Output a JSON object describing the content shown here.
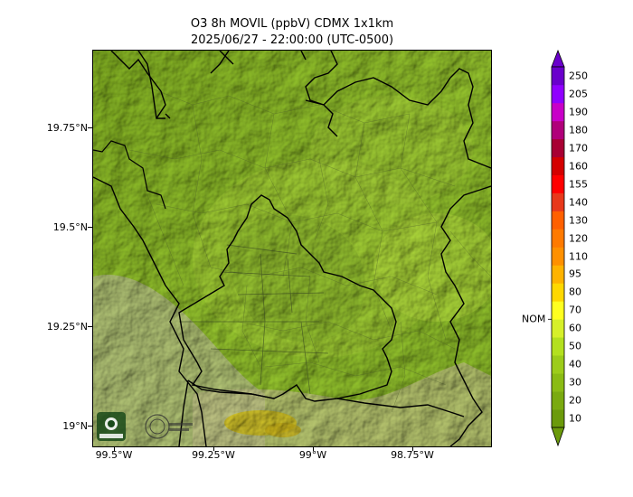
{
  "title": {
    "line1": "O3 8h MOVIL (ppbV) CDMX 1x1km",
    "line2": "2025/06/27 - 22:00:00 (UTC-0500)"
  },
  "map": {
    "y_ticks": [
      "19.75°N",
      "19.5°N",
      "19.25°N",
      "19°N"
    ],
    "x_ticks": [
      "99.5°W",
      "99.25°W",
      "99°W",
      "98.75°W"
    ],
    "logos": [
      "SEDEMA",
      "CIUDAD DE MÉXICO"
    ],
    "base_color": "#8fbf2c"
  },
  "colorbar": {
    "levels": [
      "10",
      "20",
      "30",
      "40",
      "50",
      "60",
      "70",
      "80",
      "95",
      "110",
      "120",
      "130",
      "140",
      "155",
      "160",
      "170",
      "180",
      "190",
      "205",
      "250"
    ],
    "colors": [
      "#6b9a0b",
      "#7aaa10",
      "#8abb14",
      "#9ccc1a",
      "#b3e01f",
      "#d6f02a",
      "#ffff20",
      "#ffd800",
      "#ffb300",
      "#ff9000",
      "#ff7a00",
      "#ff6000",
      "#e8381a",
      "#ff0000",
      "#d40000",
      "#a80033",
      "#b0007a",
      "#c800c8",
      "#9000ff",
      "#6a00cc"
    ],
    "nom_label": "NOM",
    "nom_value": 60
  }
}
